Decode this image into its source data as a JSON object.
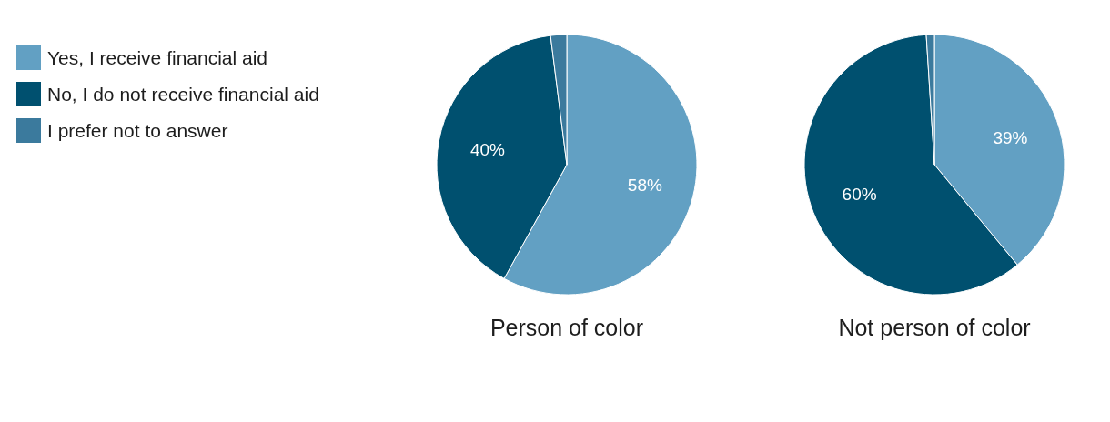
{
  "chart_data": [
    {
      "type": "pie",
      "title": "Person of color",
      "categories": [
        "Yes, I receive financial aid",
        "No, I do not receive financial aid",
        "I prefer not to answer"
      ],
      "values": [
        58,
        40,
        2
      ],
      "value_labels": [
        "58%",
        "40%",
        null
      ],
      "colors": [
        "#62a0c3",
        "#00506f",
        "#3b7a9d"
      ],
      "legend": "left"
    },
    {
      "type": "pie",
      "title": "Not person of color",
      "categories": [
        null,
        null,
        null
      ],
      "values": [
        39,
        60,
        1
      ],
      "value_labels": [
        "39%",
        "60%",
        null
      ],
      "colors": [
        "#62a0c3",
        "#00506f",
        "#3b7a9d"
      ]
    }
  ]
}
